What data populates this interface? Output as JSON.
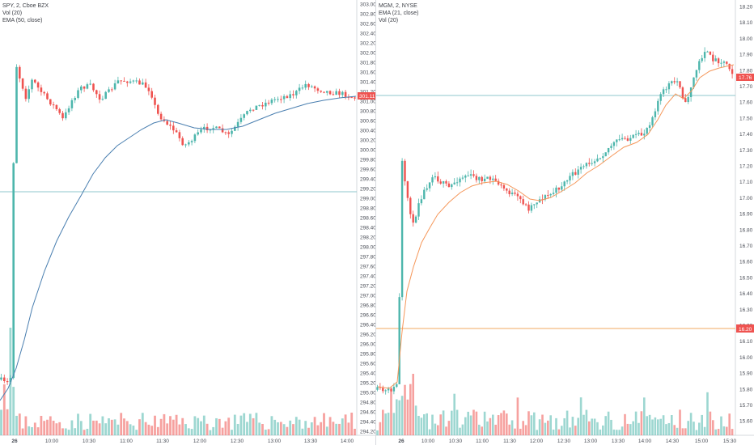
{
  "left": {
    "legend": {
      "symbol": "SPY, 2, Cboe BZX",
      "volume": "Vol (20)",
      "ema": "EMA (50, close)"
    },
    "y_ticks": [
      "303.00",
      "302.80",
      "302.60",
      "302.40",
      "302.20",
      "302.00",
      "301.80",
      "301.60",
      "301.40",
      "301.20",
      "301.00",
      "300.80",
      "300.60",
      "300.40",
      "300.20",
      "300.00",
      "299.80",
      "299.60",
      "299.40",
      "299.20",
      "299.00",
      "298.80",
      "298.60",
      "298.40",
      "298.20",
      "298.00",
      "297.80",
      "297.60",
      "297.40",
      "297.20",
      "297.00",
      "296.80",
      "296.60",
      "296.40",
      "296.20",
      "296.00",
      "295.80",
      "295.60",
      "295.40",
      "295.20",
      "295.00",
      "294.80",
      "294.60",
      "294.40",
      "294.20"
    ],
    "x_ticks": [
      "26",
      "10:00",
      "10:30",
      "11:00",
      "11:30",
      "12:00",
      "12:30",
      "13:00",
      "13:30",
      "14:00"
    ],
    "last_price": "301.11",
    "colors": {
      "ema": "#4a7fb0",
      "hline": "#8fc7cc",
      "up": "#4db6ac",
      "down": "#ef5350",
      "price_tag": "#ef5350"
    }
  },
  "right": {
    "legend": {
      "symbol": "MGM, 2, NYSE",
      "ema": "EMA (21, close)",
      "volume": "Vol (20)"
    },
    "y_ticks": [
      "18.20",
      "18.10",
      "18.00",
      "17.90",
      "17.80",
      "17.70",
      "17.60",
      "17.50",
      "17.40",
      "17.30",
      "17.20",
      "17.10",
      "17.00",
      "16.90",
      "16.80",
      "16.70",
      "16.60",
      "16.50",
      "16.40",
      "16.30",
      "16.20",
      "16.10",
      "16.00",
      "15.90",
      "15.80",
      "15.70",
      "15.60"
    ],
    "x_ticks": [
      "26",
      "10:00",
      "10:30",
      "11:00",
      "11:30",
      "12:00",
      "12:30",
      "13:00",
      "13:30",
      "14:00",
      "14:30",
      "15:00",
      "15:30"
    ],
    "last_price": "17.76",
    "hline_tag": "16.20",
    "colors": {
      "ema": "#f5975a",
      "hline": "#8fc7cc",
      "hline2": "#f0a860",
      "up": "#4db6ac",
      "down": "#ef5350",
      "price_tag": "#ef5350",
      "hline_tag": "#ef5350"
    }
  }
}
